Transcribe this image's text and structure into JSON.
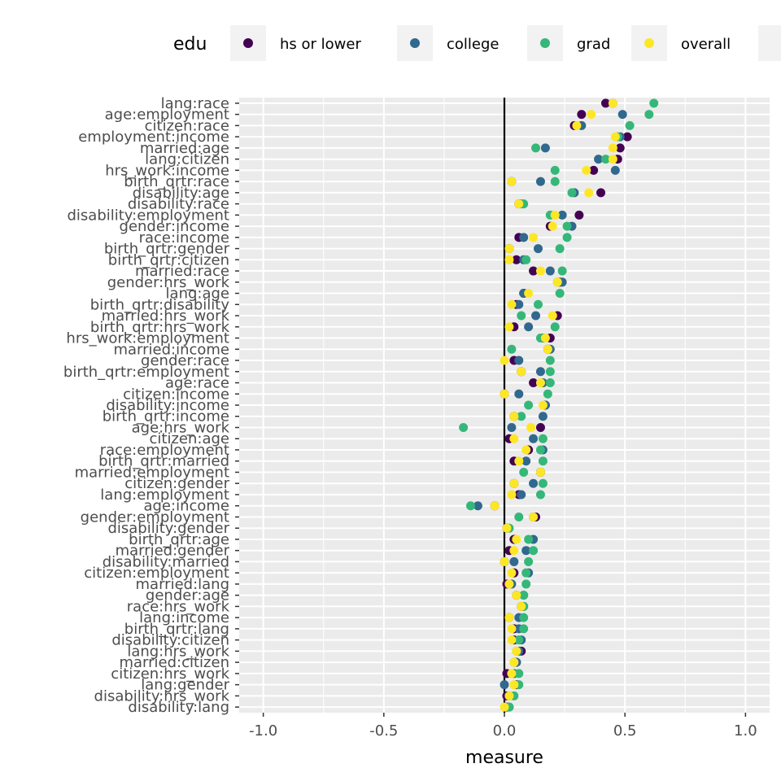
{
  "chart_data": {
    "type": "scatter",
    "orientation": "horizontal",
    "xlabel": "measure",
    "ylabel": "",
    "xlim": [
      -1.1,
      1.1
    ],
    "xticks": [
      -1.0,
      -0.5,
      0.0,
      0.5,
      1.0
    ],
    "xtick_labels": [
      "-1.0",
      "-0.5",
      "0.0",
      "0.5",
      "1.0"
    ],
    "reference_line_x": 0,
    "grid": true,
    "legend": {
      "title": "edu",
      "position": "top",
      "entries": [
        {
          "key": "hs",
          "label": "hs or lower",
          "color": "#440154"
        },
        {
          "key": "col",
          "label": "college",
          "color": "#31688E"
        },
        {
          "key": "grad",
          "label": "grad",
          "color": "#35B779"
        },
        {
          "key": "ovr",
          "label": "overall",
          "color": "#FDE725"
        }
      ]
    },
    "categories": [
      "lang:race",
      "age:employment",
      "citizen:race",
      "employment:income",
      "married:age",
      "lang:citizen",
      "hrs_work:income",
      "birth_qrtr:race",
      "disability:age",
      "disability:race",
      "disability:employment",
      "gender:income",
      "race:income",
      "birth_qrtr:gender",
      "birth_qrtr:citizen",
      "married:race",
      "gender:hrs_work",
      "lang:age",
      "birth_qrtr:disability",
      "married:hrs_work",
      "birth_qrtr:hrs_work",
      "hrs_work:employment",
      "married:income",
      "gender:race",
      "birth_qrtr:employment",
      "age:race",
      "citizen:income",
      "disability:income",
      "birth_qrtr:income",
      "age:hrs_work",
      "citizen:age",
      "race:employment",
      "birth_qrtr:married",
      "married:employment",
      "citizen:gender",
      "lang:employment",
      "age:income",
      "gender:employment",
      "disability:gender",
      "birth_qrtr:age",
      "married:gender",
      "disability:married",
      "citizen:employment",
      "married:lang",
      "gender:age",
      "race:hrs_work",
      "lang:income",
      "birth_qrtr:lang",
      "disability:citizen",
      "lang:hrs_work",
      "married:citizen",
      "citizen:hrs_work",
      "lang:gender",
      "disability:hrs_work",
      "disability:lang"
    ],
    "series": [
      {
        "name": "hs or lower",
        "values": [
          0.42,
          0.32,
          0.29,
          0.51,
          0.48,
          0.47,
          0.37,
          0.03,
          0.4,
          0.06,
          0.31,
          0.19,
          0.06,
          0.02,
          0.05,
          0.12,
          0.23,
          0.08,
          0.05,
          0.22,
          0.04,
          0.19,
          0.18,
          0.04,
          0.07,
          0.12,
          0.0,
          0.17,
          0.04,
          0.15,
          0.02,
          0.1,
          0.04,
          0.15,
          0.04,
          0.06,
          -0.04,
          0.13,
          0.01,
          0.04,
          0.02,
          0.0,
          0.04,
          0.01,
          0.05,
          0.07,
          0.02,
          0.04,
          0.04,
          0.07,
          0.05,
          0.01,
          0.05,
          0.01,
          0.01
        ]
      },
      {
        "name": "college",
        "values": [
          0.45,
          0.49,
          0.32,
          0.48,
          0.17,
          0.39,
          0.46,
          0.15,
          0.29,
          0.07,
          0.24,
          0.28,
          0.08,
          0.14,
          0.08,
          0.19,
          0.24,
          0.08,
          0.06,
          0.13,
          0.1,
          0.16,
          0.19,
          0.06,
          0.15,
          0.16,
          0.06,
          0.17,
          0.16,
          0.03,
          0.12,
          0.16,
          0.09,
          0.15,
          0.12,
          0.07,
          -0.11,
          0.12,
          0.01,
          0.12,
          0.09,
          0.04,
          0.1,
          0.03,
          0.08,
          0.08,
          0.06,
          0.06,
          0.07,
          0.06,
          0.05,
          0.04,
          0.0,
          0.02,
          0.02
        ]
      },
      {
        "name": "grad",
        "values": [
          0.62,
          0.6,
          0.52,
          0.47,
          0.13,
          0.42,
          0.21,
          0.21,
          0.28,
          0.08,
          0.19,
          0.26,
          0.26,
          0.23,
          0.09,
          0.24,
          0.22,
          0.23,
          0.14,
          0.07,
          0.21,
          0.15,
          0.03,
          0.19,
          0.19,
          0.19,
          0.18,
          0.1,
          0.07,
          -0.17,
          0.16,
          0.15,
          0.16,
          0.08,
          0.16,
          0.15,
          -0.14,
          0.06,
          0.02,
          0.1,
          0.12,
          0.1,
          0.09,
          0.09,
          0.08,
          0.08,
          0.08,
          0.08,
          0.06,
          0.05,
          0.04,
          0.06,
          0.06,
          0.04,
          0.02
        ]
      },
      {
        "name": "overall",
        "values": [
          0.45,
          0.36,
          0.3,
          0.46,
          0.45,
          0.45,
          0.34,
          0.03,
          0.35,
          0.06,
          0.21,
          0.2,
          0.12,
          0.02,
          0.02,
          0.15,
          0.22,
          0.1,
          0.03,
          0.2,
          0.02,
          0.17,
          0.18,
          0.0,
          0.07,
          0.15,
          0.0,
          0.16,
          0.04,
          0.11,
          0.04,
          0.09,
          0.06,
          0.15,
          0.04,
          0.03,
          -0.04,
          0.12,
          0.01,
          0.05,
          0.04,
          0.0,
          0.03,
          0.02,
          0.05,
          0.07,
          0.02,
          0.03,
          0.03,
          0.05,
          0.04,
          0.03,
          0.04,
          0.02,
          0.0
        ]
      }
    ]
  }
}
